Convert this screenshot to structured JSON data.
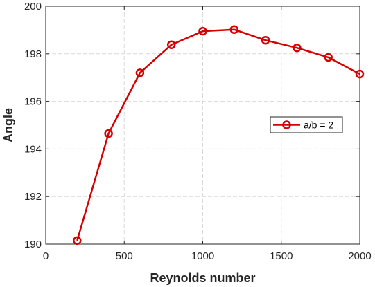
{
  "chart_data": {
    "type": "line",
    "title": "",
    "xlabel": "Reynolds number",
    "ylabel": "Angle",
    "xlim": [
      0,
      2000
    ],
    "ylim": [
      190,
      200
    ],
    "xticks": [
      0,
      500,
      1000,
      1500,
      2000
    ],
    "yticks": [
      190,
      192,
      194,
      196,
      198,
      200
    ],
    "grid": true,
    "legend_position": "right-middle",
    "series": [
      {
        "name": "a/b = 2",
        "color": "#d40000",
        "marker": "circle",
        "x": [
          200,
          400,
          600,
          800,
          1000,
          1200,
          1400,
          1600,
          1800,
          2000
        ],
        "y": [
          190.15,
          194.65,
          197.2,
          198.38,
          198.95,
          199.02,
          198.57,
          198.25,
          197.85,
          197.15
        ]
      }
    ]
  }
}
